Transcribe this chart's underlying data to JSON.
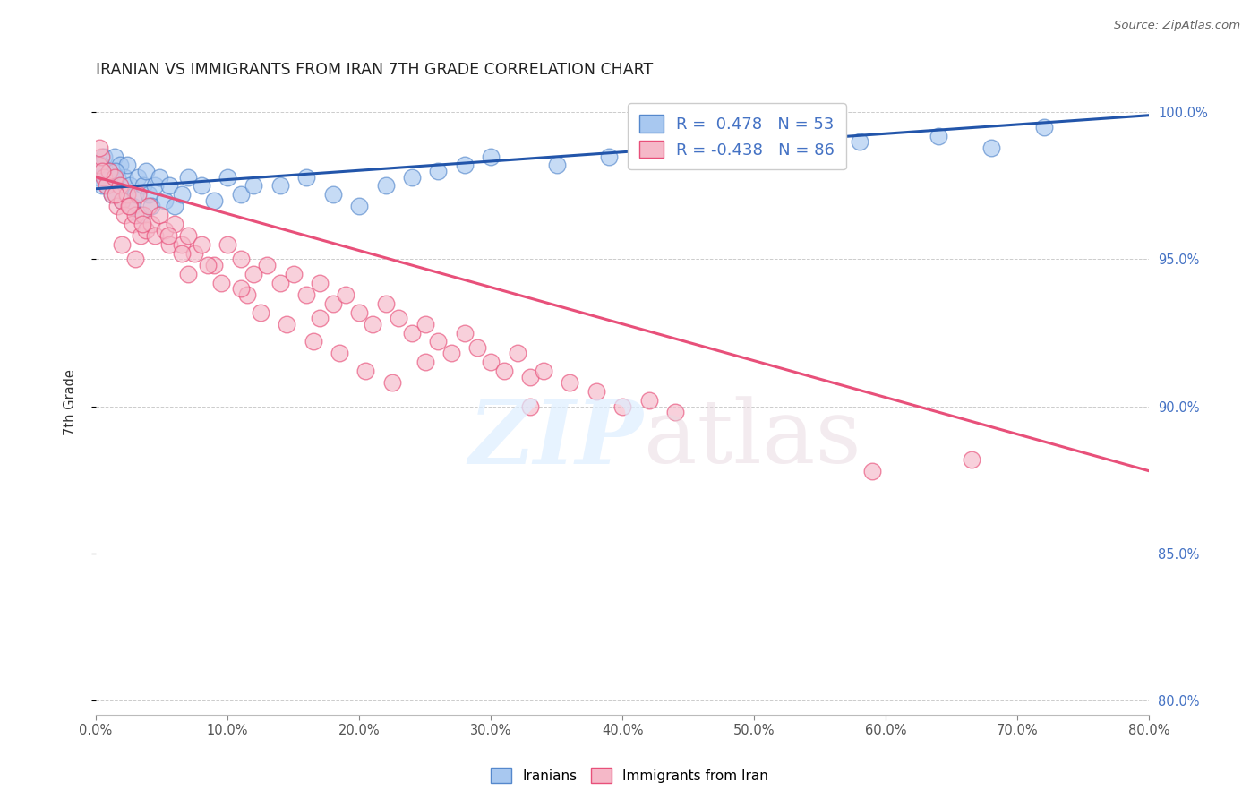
{
  "title": "IRANIAN VS IMMIGRANTS FROM IRAN 7TH GRADE CORRELATION CHART",
  "source": "Source: ZipAtlas.com",
  "ylabel_label": "7th Grade",
  "xlim": [
    0.0,
    0.8
  ],
  "ylim": [
    0.795,
    1.008
  ],
  "blue_R": 0.478,
  "blue_N": 53,
  "pink_R": -0.438,
  "pink_N": 86,
  "blue_color": "#a8c8f0",
  "pink_color": "#f5b8c8",
  "blue_edge_color": "#5588cc",
  "pink_edge_color": "#e8507a",
  "blue_line_color": "#2255aa",
  "pink_line_color": "#e8507a",
  "grid_color": "#cccccc",
  "blue_line_y0": 0.974,
  "blue_line_y1": 0.999,
  "pink_line_y0": 0.978,
  "pink_line_y1": 0.878,
  "blue_scatter_x": [
    0.002,
    0.004,
    0.006,
    0.008,
    0.01,
    0.012,
    0.014,
    0.016,
    0.018,
    0.02,
    0.022,
    0.024,
    0.026,
    0.028,
    0.03,
    0.032,
    0.034,
    0.036,
    0.038,
    0.04,
    0.042,
    0.045,
    0.048,
    0.052,
    0.056,
    0.06,
    0.065,
    0.07,
    0.08,
    0.09,
    0.1,
    0.11,
    0.12,
    0.14,
    0.16,
    0.18,
    0.2,
    0.22,
    0.24,
    0.26,
    0.28,
    0.3,
    0.35,
    0.39,
    0.43,
    0.48,
    0.53,
    0.58,
    0.64,
    0.68,
    0.72,
    0.005,
    0.015
  ],
  "blue_scatter_y": [
    0.978,
    0.982,
    0.985,
    0.975,
    0.98,
    0.972,
    0.985,
    0.978,
    0.982,
    0.97,
    0.978,
    0.982,
    0.975,
    0.968,
    0.972,
    0.978,
    0.965,
    0.975,
    0.98,
    0.972,
    0.968,
    0.975,
    0.978,
    0.97,
    0.975,
    0.968,
    0.972,
    0.978,
    0.975,
    0.97,
    0.978,
    0.972,
    0.975,
    0.975,
    0.978,
    0.972,
    0.968,
    0.975,
    0.978,
    0.98,
    0.982,
    0.985,
    0.982,
    0.985,
    0.988,
    0.99,
    0.985,
    0.99,
    0.992,
    0.988,
    0.995,
    0.975,
    0.98
  ],
  "pink_scatter_x": [
    0.002,
    0.004,
    0.006,
    0.008,
    0.01,
    0.012,
    0.014,
    0.016,
    0.018,
    0.02,
    0.022,
    0.024,
    0.026,
    0.028,
    0.03,
    0.032,
    0.034,
    0.036,
    0.038,
    0.04,
    0.042,
    0.045,
    0.048,
    0.052,
    0.056,
    0.06,
    0.065,
    0.07,
    0.075,
    0.08,
    0.09,
    0.1,
    0.11,
    0.12,
    0.13,
    0.14,
    0.15,
    0.16,
    0.17,
    0.18,
    0.19,
    0.2,
    0.21,
    0.22,
    0.23,
    0.24,
    0.25,
    0.26,
    0.27,
    0.28,
    0.29,
    0.3,
    0.31,
    0.32,
    0.33,
    0.34,
    0.36,
    0.38,
    0.4,
    0.42,
    0.44,
    0.005,
    0.015,
    0.025,
    0.035,
    0.055,
    0.065,
    0.085,
    0.095,
    0.115,
    0.125,
    0.145,
    0.165,
    0.185,
    0.205,
    0.225,
    0.02,
    0.03,
    0.07,
    0.11,
    0.17,
    0.25,
    0.33,
    0.59,
    0.665,
    0.003
  ],
  "pink_scatter_y": [
    0.982,
    0.985,
    0.978,
    0.975,
    0.98,
    0.972,
    0.978,
    0.968,
    0.975,
    0.97,
    0.965,
    0.972,
    0.968,
    0.962,
    0.965,
    0.972,
    0.958,
    0.965,
    0.96,
    0.968,
    0.962,
    0.958,
    0.965,
    0.96,
    0.955,
    0.962,
    0.955,
    0.958,
    0.952,
    0.955,
    0.948,
    0.955,
    0.95,
    0.945,
    0.948,
    0.942,
    0.945,
    0.938,
    0.942,
    0.935,
    0.938,
    0.932,
    0.928,
    0.935,
    0.93,
    0.925,
    0.928,
    0.922,
    0.918,
    0.925,
    0.92,
    0.915,
    0.912,
    0.918,
    0.91,
    0.912,
    0.908,
    0.905,
    0.9,
    0.902,
    0.898,
    0.98,
    0.972,
    0.968,
    0.962,
    0.958,
    0.952,
    0.948,
    0.942,
    0.938,
    0.932,
    0.928,
    0.922,
    0.918,
    0.912,
    0.908,
    0.955,
    0.95,
    0.945,
    0.94,
    0.93,
    0.915,
    0.9,
    0.878,
    0.882,
    0.988
  ]
}
